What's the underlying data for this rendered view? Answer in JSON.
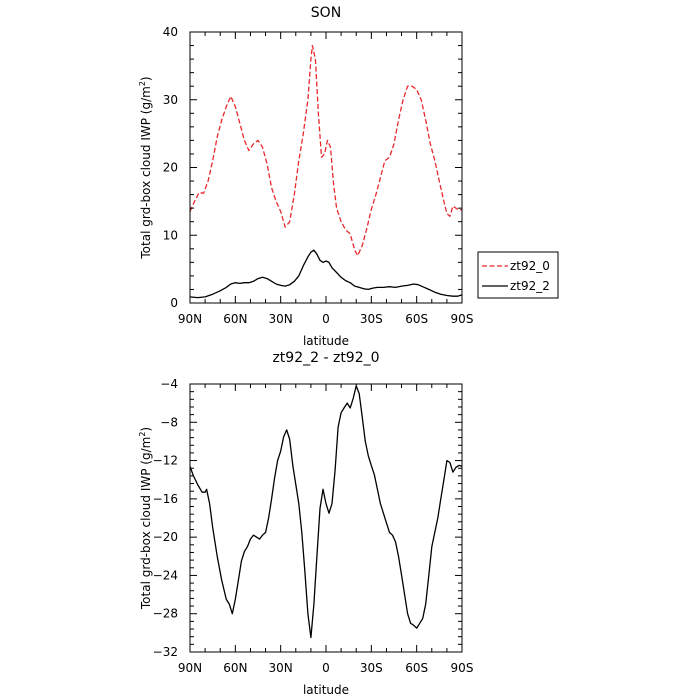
{
  "chart_data": [
    {
      "type": "line",
      "title": "SON",
      "xlabel": "latitude",
      "ylabel": "Total grd-box cloud IWP (g/m²)",
      "ylabel_parts": [
        "Total grd-box cloud IWP (g/m",
        "2",
        ")"
      ],
      "xlim": [
        90,
        -90
      ],
      "ylim": [
        0,
        40
      ],
      "xticks": [
        {
          "value": 90,
          "label": "90N"
        },
        {
          "value": 60,
          "label": "60N"
        },
        {
          "value": 30,
          "label": "30N"
        },
        {
          "value": 0,
          "label": "0"
        },
        {
          "value": -30,
          "label": "30S"
        },
        {
          "value": -60,
          "label": "60S"
        },
        {
          "value": -90,
          "label": "90S"
        }
      ],
      "yticks": [
        0,
        10,
        20,
        30,
        40
      ],
      "legend_position": "right",
      "series": [
        {
          "name": "zt92_0",
          "color": "#e8282b",
          "dash": true,
          "points": [
            [
              90,
              13.5
            ],
            [
              87,
              15.0
            ],
            [
              84,
              16.3
            ],
            [
              81,
              16.2
            ],
            [
              78,
              18.0
            ],
            [
              75,
              21.0
            ],
            [
              72,
              24.5
            ],
            [
              69,
              27.0
            ],
            [
              66,
              29.0
            ],
            [
              63,
              30.5
            ],
            [
              60,
              29.0
            ],
            [
              57,
              26.5
            ],
            [
              54,
              24.0
            ],
            [
              51,
              22.5
            ],
            [
              48,
              23.5
            ],
            [
              45,
              24.0
            ],
            [
              42,
              23.0
            ],
            [
              39,
              20.5
            ],
            [
              36,
              17.0
            ],
            [
              33,
              15.0
            ],
            [
              30,
              13.5
            ],
            [
              27,
              11.2
            ],
            [
              24,
              12.0
            ],
            [
              21,
              16.0
            ],
            [
              18,
              21.0
            ],
            [
              15,
              25.0
            ],
            [
              12,
              30.0
            ],
            [
              10,
              36.0
            ],
            [
              9,
              38.0
            ],
            [
              7,
              36.0
            ],
            [
              5,
              28.0
            ],
            [
              3,
              21.5
            ],
            [
              1,
              22.0
            ],
            [
              -1,
              24.0
            ],
            [
              -3,
              23.0
            ],
            [
              -5,
              17.5
            ],
            [
              -7,
              14.0
            ],
            [
              -10,
              12.0
            ],
            [
              -13,
              10.8
            ],
            [
              -16,
              10.2
            ],
            [
              -19,
              7.8
            ],
            [
              -21,
              7.0
            ],
            [
              -24,
              8.5
            ],
            [
              -27,
              11.0
            ],
            [
              -30,
              13.8
            ],
            [
              -33,
              16.0
            ],
            [
              -36,
              18.5
            ],
            [
              -39,
              21.0
            ],
            [
              -42,
              21.5
            ],
            [
              -45,
              23.5
            ],
            [
              -48,
              27.0
            ],
            [
              -51,
              30.0
            ],
            [
              -54,
              32.0
            ],
            [
              -57,
              32.0
            ],
            [
              -60,
              31.5
            ],
            [
              -63,
              30.0
            ],
            [
              -66,
              27.0
            ],
            [
              -69,
              23.5
            ],
            [
              -72,
              21.0
            ],
            [
              -75,
              18.0
            ],
            [
              -78,
              15.0
            ],
            [
              -80,
              13.2
            ],
            [
              -82,
              12.8
            ],
            [
              -84,
              14.3
            ],
            [
              -86,
              14.0
            ],
            [
              -88,
              13.7
            ],
            [
              -90,
              13.8
            ]
          ]
        },
        {
          "name": "zt92_2",
          "color": "#000000",
          "dash": false,
          "points": [
            [
              90,
              0.9
            ],
            [
              85,
              0.8
            ],
            [
              80,
              0.9
            ],
            [
              75,
              1.3
            ],
            [
              70,
              1.8
            ],
            [
              66,
              2.3
            ],
            [
              63,
              2.8
            ],
            [
              60,
              3.0
            ],
            [
              57,
              2.9
            ],
            [
              54,
              3.0
            ],
            [
              51,
              3.0
            ],
            [
              48,
              3.2
            ],
            [
              45,
              3.6
            ],
            [
              42,
              3.8
            ],
            [
              39,
              3.6
            ],
            [
              36,
              3.2
            ],
            [
              33,
              2.8
            ],
            [
              30,
              2.6
            ],
            [
              27,
              2.5
            ],
            [
              24,
              2.7
            ],
            [
              21,
              3.2
            ],
            [
              18,
              4.0
            ],
            [
              15,
              5.5
            ],
            [
              12,
              6.8
            ],
            [
              10,
              7.5
            ],
            [
              8,
              7.8
            ],
            [
              6,
              7.2
            ],
            [
              4,
              6.3
            ],
            [
              2,
              6.0
            ],
            [
              0,
              6.2
            ],
            [
              -2,
              6.0
            ],
            [
              -4,
              5.2
            ],
            [
              -7,
              4.5
            ],
            [
              -10,
              3.8
            ],
            [
              -13,
              3.3
            ],
            [
              -16,
              3.0
            ],
            [
              -19,
              2.5
            ],
            [
              -22,
              2.3
            ],
            [
              -25,
              2.1
            ],
            [
              -28,
              2.0
            ],
            [
              -31,
              2.2
            ],
            [
              -34,
              2.3
            ],
            [
              -38,
              2.3
            ],
            [
              -42,
              2.4
            ],
            [
              -46,
              2.3
            ],
            [
              -50,
              2.5
            ],
            [
              -54,
              2.6
            ],
            [
              -58,
              2.8
            ],
            [
              -61,
              2.7
            ],
            [
              -64,
              2.4
            ],
            [
              -68,
              2.0
            ],
            [
              -72,
              1.6
            ],
            [
              -76,
              1.3
            ],
            [
              -80,
              1.1
            ],
            [
              -84,
              1.0
            ],
            [
              -87,
              1.0
            ],
            [
              -90,
              1.2
            ]
          ]
        }
      ]
    },
    {
      "type": "line",
      "title": "zt92_2 - zt92_0",
      "xlabel": "latitude",
      "ylabel": "Total grd-box cloud IWP (g/m²)",
      "ylabel_parts": [
        "Total grd-box cloud IWP (g/m",
        "2",
        ")"
      ],
      "xlim": [
        90,
        -90
      ],
      "ylim": [
        -32,
        -4
      ],
      "xticks": [
        {
          "value": 90,
          "label": "90N"
        },
        {
          "value": 60,
          "label": "60N"
        },
        {
          "value": 30,
          "label": "30N"
        },
        {
          "value": 0,
          "label": "0"
        },
        {
          "value": -30,
          "label": "30S"
        },
        {
          "value": -60,
          "label": "60S"
        },
        {
          "value": -90,
          "label": "90S"
        }
      ],
      "yticks": [
        -4,
        -8,
        -12,
        -16,
        -20,
        -24,
        -28,
        -32
      ],
      "series": [
        {
          "color": "#000000",
          "dash": false,
          "points": [
            [
              90,
              -12.6
            ],
            [
              88,
              -13.5
            ],
            [
              85,
              -14.5
            ],
            [
              82,
              -15.3
            ],
            [
              80,
              -15.3
            ],
            [
              79,
              -15.0
            ],
            [
              77,
              -16.5
            ],
            [
              75,
              -19.0
            ],
            [
              72,
              -22.0
            ],
            [
              69,
              -24.5
            ],
            [
              66,
              -26.5
            ],
            [
              64,
              -27.0
            ],
            [
              62,
              -28.0
            ],
            [
              60,
              -26.5
            ],
            [
              58,
              -24.5
            ],
            [
              56,
              -22.5
            ],
            [
              54,
              -21.5
            ],
            [
              52,
              -21.0
            ],
            [
              50,
              -20.2
            ],
            [
              48,
              -19.8
            ],
            [
              46,
              -20.0
            ],
            [
              44,
              -20.2
            ],
            [
              42,
              -19.8
            ],
            [
              40,
              -19.5
            ],
            [
              38,
              -18.0
            ],
            [
              36,
              -16.0
            ],
            [
              34,
              -13.8
            ],
            [
              32,
              -12.0
            ],
            [
              30,
              -11.0
            ],
            [
              28,
              -9.5
            ],
            [
              26,
              -8.8
            ],
            [
              24,
              -9.8
            ],
            [
              22,
              -12.5
            ],
            [
              20,
              -14.5
            ],
            [
              18,
              -16.5
            ],
            [
              16,
              -19.5
            ],
            [
              14,
              -23.5
            ],
            [
              12,
              -28.0
            ],
            [
              10,
              -30.5
            ],
            [
              8,
              -27.0
            ],
            [
              6,
              -22.0
            ],
            [
              4,
              -17.0
            ],
            [
              2,
              -15.0
            ],
            [
              0,
              -16.5
            ],
            [
              -2,
              -17.5
            ],
            [
              -4,
              -16.5
            ],
            [
              -6,
              -13.0
            ],
            [
              -8,
              -8.5
            ],
            [
              -10,
              -7.0
            ],
            [
              -12,
              -6.5
            ],
            [
              -14,
              -6.0
            ],
            [
              -16,
              -6.5
            ],
            [
              -18,
              -5.5
            ],
            [
              -20,
              -4.2
            ],
            [
              -22,
              -5.0
            ],
            [
              -24,
              -7.5
            ],
            [
              -26,
              -10.0
            ],
            [
              -28,
              -11.5
            ],
            [
              -30,
              -12.5
            ],
            [
              -32,
              -13.5
            ],
            [
              -34,
              -15.0
            ],
            [
              -36,
              -16.5
            ],
            [
              -38,
              -17.5
            ],
            [
              -40,
              -18.5
            ],
            [
              -42,
              -19.5
            ],
            [
              -44,
              -19.8
            ],
            [
              -46,
              -20.5
            ],
            [
              -48,
              -22.0
            ],
            [
              -50,
              -24.0
            ],
            [
              -52,
              -26.0
            ],
            [
              -54,
              -28.0
            ],
            [
              -56,
              -29.0
            ],
            [
              -58,
              -29.2
            ],
            [
              -60,
              -29.5
            ],
            [
              -62,
              -29.0
            ],
            [
              -64,
              -28.5
            ],
            [
              -66,
              -27.0
            ],
            [
              -68,
              -24.0
            ],
            [
              -70,
              -21.0
            ],
            [
              -72,
              -19.5
            ],
            [
              -74,
              -18.0
            ],
            [
              -76,
              -16.0
            ],
            [
              -78,
              -14.0
            ],
            [
              -80,
              -12.0
            ],
            [
              -82,
              -12.2
            ],
            [
              -84,
              -13.2
            ],
            [
              -86,
              -12.7
            ],
            [
              -88,
              -12.5
            ],
            [
              -90,
              -12.6
            ]
          ]
        }
      ]
    }
  ]
}
